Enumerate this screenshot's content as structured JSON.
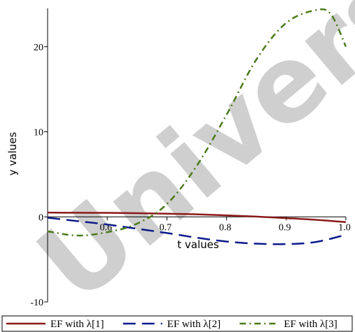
{
  "chart_data": {
    "type": "line",
    "title": "",
    "xlabel": "t values",
    "ylabel": "y values",
    "xlim": [
      0.5,
      1.0
    ],
    "ylim": [
      -10,
      24.5
    ],
    "x_ticks": [
      0.6,
      0.7,
      0.8,
      0.9,
      1.0
    ],
    "x_tick_labels": [
      "0.6",
      "0.7",
      "0.8",
      "0.9",
      "1.0"
    ],
    "y_ticks": [
      -10,
      0,
      10,
      20
    ],
    "y_tick_labels": [
      "-10",
      "0",
      "10",
      "20"
    ],
    "legend_position": "bottom",
    "grid": false,
    "watermark_text": "University",
    "series": [
      {
        "name": "EF with λ[1]",
        "color": "#8b1a1a",
        "dash": "solid",
        "x": [
          0.5,
          0.55,
          0.6,
          0.65,
          0.7,
          0.75,
          0.8,
          0.85,
          0.9,
          0.95,
          1.0
        ],
        "y": [
          0.5,
          0.48,
          0.47,
          0.43,
          0.37,
          0.3,
          0.18,
          0.03,
          -0.15,
          -0.35,
          -0.62
        ]
      },
      {
        "name": "EF with λ[2]",
        "color": "#0d1a8a",
        "dash": "long-dash",
        "x": [
          0.5,
          0.55,
          0.6,
          0.65,
          0.7,
          0.75,
          0.8,
          0.85,
          0.9,
          0.95,
          1.0
        ],
        "y": [
          -0.1,
          -0.5,
          -0.9,
          -1.4,
          -1.9,
          -2.45,
          -2.9,
          -3.15,
          -3.2,
          -2.95,
          -2.1
        ]
      },
      {
        "name": "EF with λ[3]",
        "color": "#4a7a18",
        "dash": "dash-dot",
        "x": [
          0.5,
          0.55,
          0.6,
          0.65,
          0.7,
          0.75,
          0.8,
          0.85,
          0.9,
          0.95,
          0.975,
          1.0
        ],
        "y": [
          -1.7,
          -2.2,
          -1.8,
          -0.8,
          1.5,
          6.0,
          12.0,
          18.5,
          22.8,
          24.3,
          23.8,
          20.0
        ]
      }
    ]
  }
}
